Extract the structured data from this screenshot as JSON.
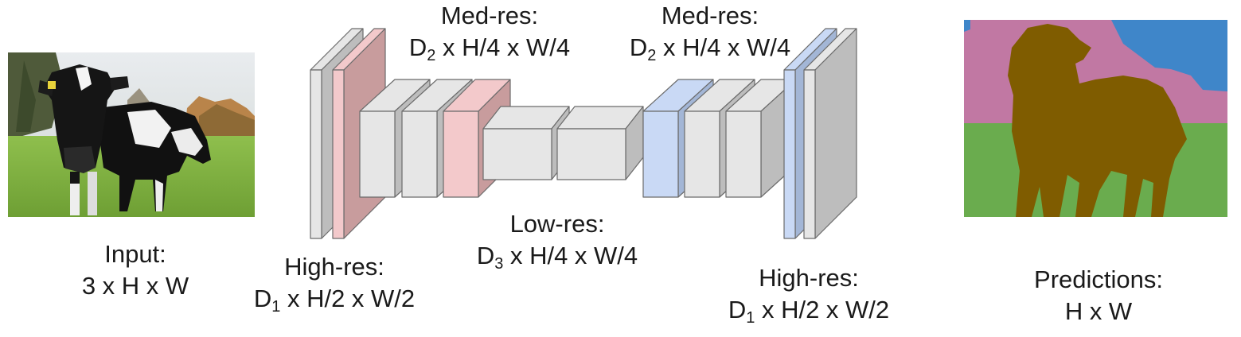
{
  "input": {
    "title": "Input:",
    "dims": "3 x H x W"
  },
  "high_res_left": {
    "title": "High-res:",
    "dim_var": "D",
    "dim_sub": "1",
    "dims_rest": " x H/2 x W/2"
  },
  "med_res_left": {
    "title": "Med-res:",
    "dim_var": "D",
    "dim_sub": "2",
    "dims_rest": " x H/4 x W/4"
  },
  "low_res": {
    "title": "Low-res:",
    "dim_var": "D",
    "dim_sub": "3",
    "dims_rest": " x H/4 x W/4"
  },
  "med_res_right": {
    "title": "Med-res:",
    "dim_var": "D",
    "dim_sub": "2",
    "dims_rest": " x H/4 x W/4"
  },
  "high_res_right": {
    "title": "High-res:",
    "dim_var": "D",
    "dim_sub": "1",
    "dims_rest": " x H/2 x W/2"
  },
  "predictions": {
    "title": "Predictions:",
    "dims": "H x W"
  },
  "colors": {
    "gray_face": "#e6e6e6",
    "gray_side": "#bdbdbd",
    "pink_face": "#f3c9cb",
    "pink_side": "#c89c9d",
    "blue_face": "#c9d9f5",
    "blue_side": "#a3b6d6",
    "seg_sky": "#3f86c9",
    "seg_tree": "#c178a3",
    "seg_grass": "#6aac4e",
    "seg_cow": "#7f5c00"
  }
}
